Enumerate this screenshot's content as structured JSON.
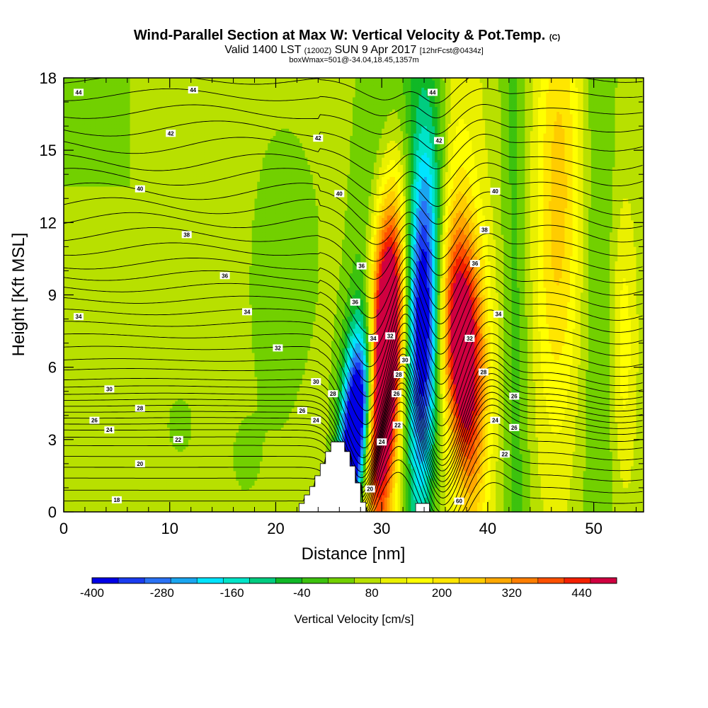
{
  "title": {
    "main": "Wind-Parallel Section at Max W: Vertical Velocity & Pot.Temp.",
    "main_suffix": "(C)",
    "line2_a": "Valid 1400 LST",
    "line2_b": "(1200Z)",
    "line2_c": "SUN 9 Apr 2017",
    "line2_d": "[12hrFcst@0434z]",
    "line3": "boxWmax=501@-34.04,18.45,1357m"
  },
  "colors": {
    "ramp": [
      "#0000e6",
      "#1a3cf0",
      "#2a72f5",
      "#1aa6f0",
      "#00e4ff",
      "#00e4c8",
      "#00cc80",
      "#10b826",
      "#3cc20e",
      "#72d000",
      "#b8e000",
      "#eaf000",
      "#ffff00",
      "#ffe600",
      "#ffcc00",
      "#ffa800",
      "#ff7e00",
      "#ff5000",
      "#f42000",
      "#d00040"
    ],
    "terrain": "#ffffff"
  },
  "chart_data": {
    "type": "heatmap",
    "xlabel": "Distance [nm]",
    "ylabel": "Height [Kft MSL]",
    "xlim": [
      0,
      54.7
    ],
    "ylim": [
      0,
      18
    ],
    "xticks": [
      0,
      10,
      20,
      30,
      40,
      50
    ],
    "yticks": [
      0,
      3,
      6,
      9,
      12,
      15,
      18
    ],
    "colorbar": {
      "title": "Vertical Velocity [cm/s]",
      "min": -400,
      "max": 500,
      "step": 40,
      "tick_labels": [
        -400,
        -280,
        -160,
        -40,
        80,
        200,
        320,
        440
      ]
    },
    "terrain_profile": [
      [
        0,
        0
      ],
      [
        22.2,
        0
      ],
      [
        22.2,
        0.35
      ],
      [
        22.7,
        0.35
      ],
      [
        22.7,
        0.7
      ],
      [
        23.2,
        0.7
      ],
      [
        23.2,
        1.05
      ],
      [
        23.7,
        1.05
      ],
      [
        23.7,
        1.5
      ],
      [
        24.2,
        1.5
      ],
      [
        24.2,
        2.0
      ],
      [
        24.7,
        2.0
      ],
      [
        24.7,
        2.5
      ],
      [
        25.2,
        2.5
      ],
      [
        25.2,
        2.9
      ],
      [
        26.5,
        2.9
      ],
      [
        26.5,
        2.5
      ],
      [
        27.0,
        2.5
      ],
      [
        27.0,
        1.9
      ],
      [
        27.5,
        1.9
      ],
      [
        27.5,
        1.2
      ],
      [
        28.0,
        1.2
      ],
      [
        28.0,
        0.4
      ],
      [
        28.5,
        0.4
      ],
      [
        28.5,
        0
      ],
      [
        33.2,
        0
      ],
      [
        33.2,
        0.35
      ],
      [
        34.5,
        0.35
      ],
      [
        34.5,
        0
      ],
      [
        54.7,
        0
      ]
    ],
    "theta_contour_labels": [
      {
        "x": 1.4,
        "y": 17.4,
        "label": "44"
      },
      {
        "x": 12.2,
        "y": 17.5,
        "label": "44"
      },
      {
        "x": 34.8,
        "y": 17.4,
        "label": "44"
      },
      {
        "x": 10.1,
        "y": 15.7,
        "label": "42"
      },
      {
        "x": 24.0,
        "y": 15.5,
        "label": "42"
      },
      {
        "x": 35.4,
        "y": 15.4,
        "label": "42"
      },
      {
        "x": 7.2,
        "y": 13.4,
        "label": "40"
      },
      {
        "x": 26.0,
        "y": 13.2,
        "label": "40"
      },
      {
        "x": 40.7,
        "y": 13.3,
        "label": "40"
      },
      {
        "x": 11.6,
        "y": 11.5,
        "label": "38"
      },
      {
        "x": 39.7,
        "y": 11.7,
        "label": "38"
      },
      {
        "x": 15.2,
        "y": 9.8,
        "label": "36"
      },
      {
        "x": 28.1,
        "y": 10.2,
        "label": "36"
      },
      {
        "x": 38.8,
        "y": 10.3,
        "label": "36"
      },
      {
        "x": 1.4,
        "y": 8.1,
        "label": "34"
      },
      {
        "x": 17.3,
        "y": 8.3,
        "label": "34"
      },
      {
        "x": 27.5,
        "y": 8.7,
        "label": "36"
      },
      {
        "x": 41.0,
        "y": 8.2,
        "label": "34"
      },
      {
        "x": 20.2,
        "y": 6.8,
        "label": "32"
      },
      {
        "x": 29.2,
        "y": 7.2,
        "label": "34"
      },
      {
        "x": 30.8,
        "y": 7.3,
        "label": "32"
      },
      {
        "x": 38.3,
        "y": 7.2,
        "label": "32"
      },
      {
        "x": 32.2,
        "y": 6.3,
        "label": "30"
      },
      {
        "x": 31.6,
        "y": 5.7,
        "label": "28"
      },
      {
        "x": 39.6,
        "y": 5.8,
        "label": "28"
      },
      {
        "x": 4.3,
        "y": 5.1,
        "label": "30"
      },
      {
        "x": 23.8,
        "y": 5.4,
        "label": "30"
      },
      {
        "x": 25.4,
        "y": 4.9,
        "label": "28"
      },
      {
        "x": 31.4,
        "y": 4.9,
        "label": "26"
      },
      {
        "x": 42.5,
        "y": 4.8,
        "label": "26"
      },
      {
        "x": 7.2,
        "y": 4.3,
        "label": "28"
      },
      {
        "x": 22.5,
        "y": 4.2,
        "label": "26"
      },
      {
        "x": 2.9,
        "y": 3.8,
        "label": "26"
      },
      {
        "x": 23.8,
        "y": 3.8,
        "label": "24"
      },
      {
        "x": 40.7,
        "y": 3.8,
        "label": "24"
      },
      {
        "x": 4.3,
        "y": 3.4,
        "label": "24"
      },
      {
        "x": 31.5,
        "y": 3.6,
        "label": "22"
      },
      {
        "x": 42.5,
        "y": 3.5,
        "label": "26"
      },
      {
        "x": 10.8,
        "y": 3.0,
        "label": "22"
      },
      {
        "x": 30.0,
        "y": 2.9,
        "label": "24"
      },
      {
        "x": 41.6,
        "y": 2.4,
        "label": "22"
      },
      {
        "x": 7.2,
        "y": 2.0,
        "label": "20"
      },
      {
        "x": 28.9,
        "y": 0.95,
        "label": "20"
      },
      {
        "x": 5.0,
        "y": 0.5,
        "label": "18"
      },
      {
        "x": 37.3,
        "y": 0.45,
        "label": "60"
      }
    ]
  }
}
